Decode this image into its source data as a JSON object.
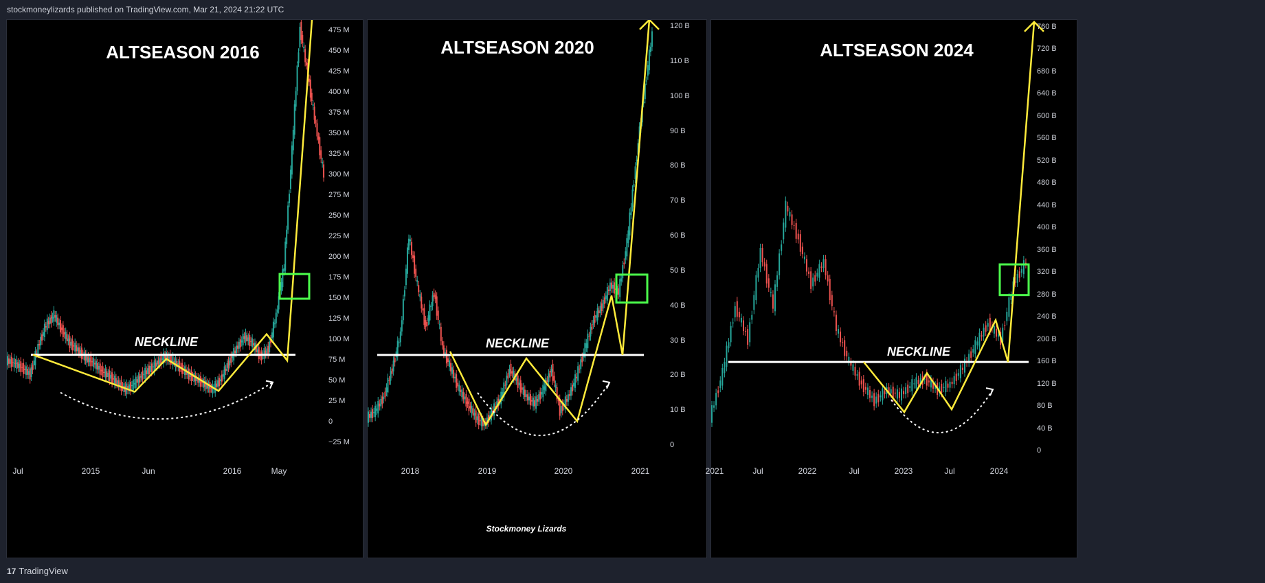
{
  "header": {
    "publisher_line": "stockmoneylizards published on TradingView.com, Mar 21, 2024 21:22 UTC"
  },
  "footer": {
    "brand": "TradingView",
    "logo_glyph": "17"
  },
  "colors": {
    "bull": "#26a69a",
    "bear": "#ef5350",
    "pattern": "#ffeb3b",
    "box": "#4cff4c",
    "neckline": "#ffffff"
  },
  "chart_data": [
    {
      "type": "candlestick",
      "title": "ALTSEASON 2016",
      "neckline_label": "NECKLINE",
      "neckline_value": 82,
      "y_ticks": [
        "475 M",
        "450 M",
        "425 M",
        "400 M",
        "375 M",
        "350 M",
        "325 M",
        "300 M",
        "275 M",
        "250 M",
        "225 M",
        "200 M",
        "175 M",
        "150 M",
        "125 M",
        "100 M",
        "75 M",
        "50 M",
        "25 M",
        "0",
        "−25 M"
      ],
      "x_ticks": [
        "Jul",
        "2015",
        "Jun",
        "2016",
        "May"
      ],
      "series": [
        {
          "values": [
            75,
            72,
            66,
            58,
            92,
            118,
            130,
            112,
            96,
            88,
            78,
            72,
            62,
            56,
            48,
            40,
            46,
            56,
            64,
            72,
            80,
            74,
            66,
            58,
            52,
            46,
            40,
            52,
            72,
            90,
            104,
            96,
            80,
            88,
            130,
            190,
            330,
            480,
            420,
            360,
            300
          ]
        }
      ],
      "pattern_values": [
        82,
        37,
        77,
        38,
        107,
        75,
        500
      ],
      "breakout_box": {
        "y_top": 180,
        "y_bottom": 150
      }
    },
    {
      "type": "candlestick",
      "title": "ALTSEASON 2020",
      "neckline_label": "NECKLINE",
      "neckline_value": 26,
      "credit": "Stockmoney Lizards",
      "y_ticks": [
        "120 B",
        "110 B",
        "100 B",
        "90 B",
        "80 B",
        "70 B",
        "60 B",
        "50 B",
        "40 B",
        "30 B",
        "20 B",
        "10 B",
        "0"
      ],
      "x_ticks": [
        "2018",
        "2019",
        "2020",
        "2021"
      ],
      "series": [
        {
          "values": [
            8,
            10,
            14,
            22,
            32,
            60,
            46,
            34,
            44,
            28,
            22,
            16,
            12,
            8,
            6,
            10,
            14,
            22,
            18,
            14,
            12,
            16,
            22,
            10,
            14,
            20,
            28,
            36,
            40,
            46,
            44,
            58,
            80,
            100,
            118
          ]
        }
      ],
      "pattern_values": [
        27,
        6,
        25,
        7,
        43,
        26,
        122
      ],
      "breakout_box": {
        "y_top": 49,
        "y_bottom": 41
      }
    },
    {
      "type": "candlestick",
      "title": "ALTSEASON 2024",
      "neckline_label": "NECKLINE",
      "neckline_value": 160,
      "y_ticks": [
        "760 B",
        "720 B",
        "680 B",
        "640 B",
        "600 B",
        "560 B",
        "520 B",
        "480 B",
        "440 B",
        "400 B",
        "360 B",
        "320 B",
        "280 B",
        "240 B",
        "200 B",
        "160 B",
        "120 B",
        "80 B",
        "40 B",
        "0"
      ],
      "x_ticks": [
        "2021",
        "Jul",
        "2022",
        "Jul",
        "2023",
        "Jul",
        "2024"
      ],
      "series": [
        {
          "values": [
            60,
            140,
            260,
            200,
            360,
            260,
            440,
            380,
            300,
            340,
            220,
            160,
            120,
            90,
            110,
            100,
            120,
            130,
            110,
            120,
            150,
            190,
            230,
            200,
            300,
            340
          ]
        }
      ],
      "pattern_values": [
        160,
        70,
        140,
        75,
        235,
        160,
        770
      ],
      "breakout_box": {
        "y_top": 335,
        "y_bottom": 280
      }
    }
  ]
}
